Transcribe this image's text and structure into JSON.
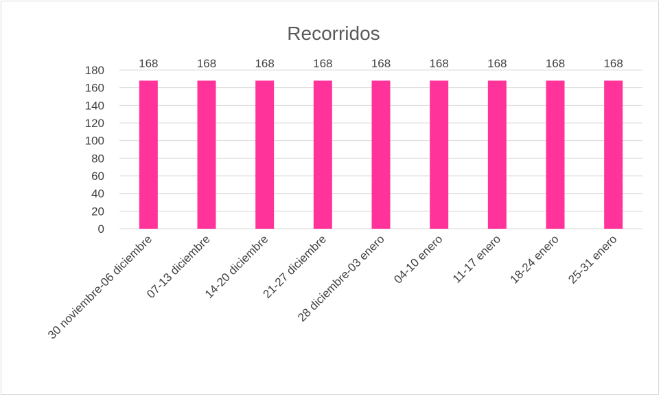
{
  "chart_data": {
    "type": "bar",
    "title": "Recorridos",
    "categories": [
      "30 noviembre-06 diciembre",
      "07-13 diciembre",
      "14-20 diciembre",
      "21-27 diciembre",
      "28 diciembre-03 enero",
      "04-10 enero",
      "11-17 enero",
      "18-24 enero",
      "25-31 enero"
    ],
    "values": [
      168,
      168,
      168,
      168,
      168,
      168,
      168,
      168,
      168
    ],
    "data_labels": [
      "168",
      "168",
      "168",
      "168",
      "168",
      "168",
      "168",
      "168",
      "168"
    ],
    "ylim": [
      0,
      180
    ],
    "yticks": [
      0,
      20,
      40,
      60,
      80,
      100,
      120,
      140,
      160,
      180
    ],
    "grid": true,
    "legend": "none",
    "bar_color": "#ff3399",
    "grid_color": "#d9d9d9"
  }
}
